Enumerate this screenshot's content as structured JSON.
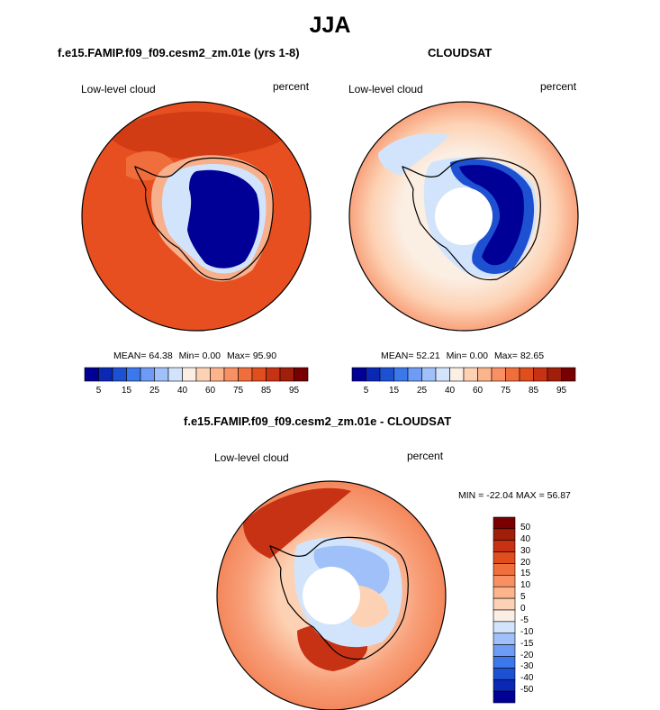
{
  "figure": {
    "title": "JJA"
  },
  "panels": {
    "model": {
      "title": "f.e15.FAMIP.f09_f09.cesm2_zm.01e (yrs 1-8)",
      "left_label": "Low-level cloud",
      "right_label": "percent",
      "mean_label": "MEAN=",
      "mean_value": "64.38",
      "min_label": "Min=",
      "min_value": "0.00",
      "max_label": "Max=",
      "max_value": "95.90"
    },
    "obs": {
      "title": "CLOUDSAT",
      "left_label": "Low-level cloud",
      "right_label": "percent",
      "mean_label": "MEAN=",
      "mean_value": "52.21",
      "min_label": "Min=",
      "min_value": "0.00",
      "max_label": "Max=",
      "max_value": "82.65"
    },
    "diff": {
      "title": "f.e15.FAMIP.f09_f09.cesm2_zm.01e - CLOUDSAT",
      "left_label": "Low-level cloud",
      "right_label": "percent",
      "minmax_text": "MIN = -22.04 MAX =  56.87"
    }
  },
  "colorbars": {
    "abs_labels": [
      "5",
      "15",
      "25",
      "40",
      "60",
      "75",
      "85",
      "95"
    ],
    "abs_colors": [
      "#000096",
      "#0a28b4",
      "#1e50d2",
      "#3c78eb",
      "#6e9bf5",
      "#a0c0fa",
      "#d2e4fc",
      "#fbeee3",
      "#fdd2b4",
      "#fcb48c",
      "#f89064",
      "#f06e3c",
      "#e04e1e",
      "#c83214",
      "#a01e0a",
      "#780000"
    ],
    "diff_labels": [
      "50",
      "40",
      "30",
      "20",
      "15",
      "10",
      "5",
      "0",
      "-5",
      "-10",
      "-15",
      "-20",
      "-30",
      "-40",
      "-50"
    ],
    "diff_colors": [
      "#780000",
      "#a01e0a",
      "#c83214",
      "#e04e1e",
      "#f06e3c",
      "#f89064",
      "#fcb48c",
      "#fdd2b4",
      "#fbeee3",
      "#d2e4fc",
      "#a0c0fa",
      "#6e9bf5",
      "#3c78eb",
      "#1e50d2",
      "#0a28b4",
      "#000096"
    ]
  },
  "chart_data": [
    {
      "type": "heatmap",
      "title": "f.e15.FAMIP.f09_f09.cesm2_zm.01e (yrs 1-8)",
      "variable": "Low-level cloud",
      "units": "percent",
      "projection": "south polar stereographic",
      "mean": 64.38,
      "min": 0.0,
      "max": 95.9,
      "contour_levels": [
        5,
        10,
        15,
        20,
        25,
        30,
        40,
        50,
        60,
        65,
        70,
        75,
        80,
        85,
        90,
        95
      ]
    },
    {
      "type": "heatmap",
      "title": "CLOUDSAT",
      "variable": "Low-level cloud",
      "units": "percent",
      "projection": "south polar stereographic",
      "mean": 52.21,
      "min": 0.0,
      "max": 82.65,
      "contour_levels": [
        5,
        10,
        15,
        20,
        25,
        30,
        40,
        50,
        60,
        65,
        70,
        75,
        80,
        85,
        90,
        95
      ]
    },
    {
      "type": "heatmap",
      "title": "f.e15.FAMIP.f09_f09.cesm2_zm.01e - CLOUDSAT",
      "variable": "Low-level cloud",
      "units": "percent",
      "projection": "south polar stereographic",
      "min": -22.04,
      "max": 56.87,
      "contour_levels": [
        -50,
        -40,
        -30,
        -20,
        -15,
        -10,
        -5,
        0,
        5,
        10,
        15,
        20,
        30,
        40,
        50
      ]
    }
  ]
}
